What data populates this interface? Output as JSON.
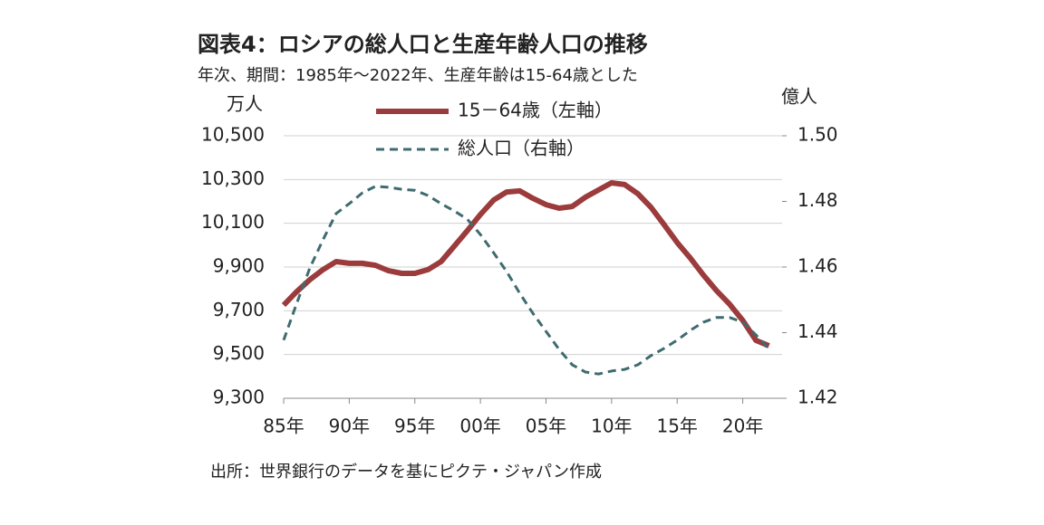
{
  "chart_data": {
    "type": "line",
    "title": "図表4：ロシアの総人口と生産年齢人口の推移",
    "subtitle": "年次、期間：1985年～2022年、生産年齢は15-64歳とした",
    "y_label": "万人",
    "y2_label": "億人",
    "source": "出所：世界銀行のデータを基にピクテ・ジャパン作成",
    "x": [
      1985,
      1986,
      1987,
      1988,
      1989,
      1990,
      1991,
      1992,
      1993,
      1994,
      1995,
      1996,
      1997,
      1998,
      1999,
      2000,
      2001,
      2002,
      2003,
      2004,
      2005,
      2006,
      2007,
      2008,
      2009,
      2010,
      2011,
      2012,
      2013,
      2014,
      2015,
      2016,
      2017,
      2018,
      2019,
      2020,
      2021,
      2022
    ],
    "xlim": [
      1985,
      2023
    ],
    "xticks": [
      {
        "value": 1985,
        "label": "85年"
      },
      {
        "value": 1990,
        "label": "90年"
      },
      {
        "value": 1995,
        "label": "95年"
      },
      {
        "value": 2000,
        "label": "00年"
      },
      {
        "value": 2005,
        "label": "05年"
      },
      {
        "value": 2010,
        "label": "10年"
      },
      {
        "value": 2015,
        "label": "15年"
      },
      {
        "value": 2020,
        "label": "20年"
      }
    ],
    "ylim": [
      9300,
      10500
    ],
    "yticks": [
      {
        "value": 9300,
        "label": "9,300"
      },
      {
        "value": 9500,
        "label": "9,500"
      },
      {
        "value": 9700,
        "label": "9,700"
      },
      {
        "value": 9900,
        "label": "9,900"
      },
      {
        "value": 10100,
        "label": "10,100"
      },
      {
        "value": 10300,
        "label": "10,300"
      },
      {
        "value": 10500,
        "label": "10,500"
      }
    ],
    "y2lim": [
      1.42,
      1.5
    ],
    "y2ticks": [
      {
        "value": 1.42,
        "label": "1.42"
      },
      {
        "value": 1.44,
        "label": "1.44"
      },
      {
        "value": 1.46,
        "label": "1.46"
      },
      {
        "value": 1.48,
        "label": "1.48"
      },
      {
        "value": 1.5,
        "label": "1.50"
      }
    ],
    "grid": true,
    "series": [
      {
        "name": "15－64歳（左軸）",
        "color": "#9b3b3c",
        "line_style": "solid",
        "values": [
          9726,
          9788,
          9842,
          9888,
          9925,
          9917,
          9917,
          9908,
          9883,
          9871,
          9871,
          9888,
          9925,
          9995,
          10066,
          10140,
          10206,
          10243,
          10248,
          10214,
          10185,
          10169,
          10177,
          10219,
          10252,
          10285,
          10277,
          10235,
          10173,
          10094,
          10012,
          9941,
          9863,
          9792,
          9730,
          9656,
          9565,
          9540
        ]
      },
      {
        "name": "総人口（右軸）",
        "color": "#3f6b70",
        "line_style": "dashed",
        "axis": "y2",
        "values": [
          1.4377,
          1.449,
          1.4597,
          1.4683,
          1.4763,
          1.4793,
          1.4826,
          1.4846,
          1.4843,
          1.4837,
          1.4834,
          1.4818,
          1.4793,
          1.4771,
          1.4746,
          1.4699,
          1.4644,
          1.4586,
          1.452,
          1.4459,
          1.4404,
          1.4349,
          1.4302,
          1.428,
          1.4274,
          1.4283,
          1.4288,
          1.4302,
          1.433,
          1.4352,
          1.4377,
          1.4407,
          1.4432,
          1.4446,
          1.4446,
          1.4432,
          1.4393,
          1.4349
        ]
      }
    ]
  }
}
